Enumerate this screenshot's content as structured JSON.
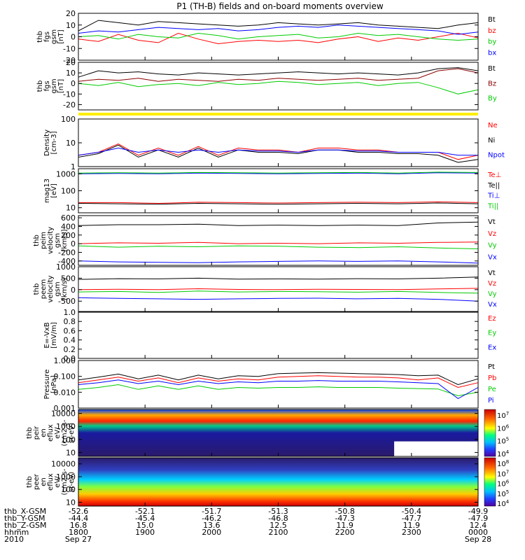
{
  "title": "P1 (TH-B) fields and on-board moments overview",
  "chart_data": [
    {
      "type": "line",
      "panel": "fgs_gsm",
      "ylabel": [
        "thb",
        "fgs",
        "gsm",
        "[nT]"
      ],
      "ylim": [
        -20,
        20
      ],
      "yticks": [
        -20,
        -10,
        0,
        10,
        20
      ],
      "x": [
        0,
        0.05,
        0.1,
        0.15,
        0.2,
        0.25,
        0.3,
        0.35,
        0.4,
        0.45,
        0.5,
        0.55,
        0.6,
        0.65,
        0.7,
        0.75,
        0.8,
        0.85,
        0.9,
        0.95,
        1.0
      ],
      "series": [
        {
          "name": "Bt",
          "color": "#000000",
          "values": [
            5,
            14,
            12,
            10,
            13,
            12,
            11,
            10,
            9,
            10,
            12,
            11,
            10,
            11,
            12,
            10,
            9,
            8,
            7,
            10,
            12
          ]
        },
        {
          "name": "bz",
          "color": "#ff0000",
          "values": [
            -2,
            -4,
            2,
            -3,
            -5,
            3,
            -2,
            -6,
            -4,
            -3,
            -4,
            -3,
            -5,
            -2,
            0,
            -4,
            -1,
            -3,
            0,
            3,
            -1
          ]
        },
        {
          "name": "by",
          "color": "#00cc00",
          "values": [
            0,
            1,
            -2,
            2,
            0,
            -1,
            3,
            1,
            -2,
            0,
            1,
            2,
            -1,
            0,
            3,
            1,
            2,
            0,
            -2,
            -3,
            -2
          ]
        },
        {
          "name": "bx",
          "color": "#0000ff",
          "values": [
            3,
            5,
            4,
            6,
            8,
            7,
            6,
            7,
            5,
            6,
            8,
            9,
            8,
            10,
            9,
            8,
            7,
            6,
            5,
            2,
            4
          ]
        }
      ]
    },
    {
      "type": "line",
      "panel": "fgs_gsm_sw",
      "ylabel": [
        "thb",
        "fgs",
        "gsm",
        "[nT]"
      ],
      "ylim": [
        -25,
        20
      ],
      "yticks": [
        -20,
        -10,
        0,
        10,
        20
      ],
      "x": [
        0,
        0.05,
        0.1,
        0.15,
        0.2,
        0.25,
        0.3,
        0.35,
        0.4,
        0.45,
        0.5,
        0.55,
        0.6,
        0.65,
        0.7,
        0.75,
        0.8,
        0.85,
        0.9,
        0.95,
        1.0
      ],
      "series": [
        {
          "name": "Bt",
          "color": "#000000",
          "values": [
            6,
            12,
            10,
            11,
            9,
            8,
            10,
            9,
            8,
            9,
            10,
            11,
            10,
            9,
            10,
            9,
            8,
            10,
            14,
            15,
            12
          ]
        },
        {
          "name": "Bz",
          "color": "#8b0000",
          "values": [
            2,
            4,
            3,
            5,
            2,
            4,
            3,
            2,
            4,
            3,
            5,
            4,
            3,
            4,
            5,
            3,
            4,
            5,
            12,
            14,
            10
          ]
        },
        {
          "name": "By",
          "color": "#00cc00",
          "values": [
            0,
            -2,
            1,
            -3,
            -1,
            0,
            -2,
            1,
            -1,
            0,
            2,
            1,
            -1,
            0,
            1,
            -2,
            0,
            1,
            -4,
            -10,
            -6
          ]
        }
      ]
    },
    {
      "type": "line",
      "panel": "density",
      "ylabel": [
        "Density",
        "[cm-3]"
      ],
      "yscale": "log",
      "ylim": [
        1,
        100
      ],
      "yticks": [
        1,
        10,
        100
      ],
      "x": [
        0,
        0.05,
        0.1,
        0.15,
        0.2,
        0.25,
        0.3,
        0.35,
        0.4,
        0.45,
        0.5,
        0.55,
        0.6,
        0.65,
        0.7,
        0.75,
        0.8,
        0.85,
        0.9,
        0.95,
        1.0
      ],
      "series": [
        {
          "name": "Ne",
          "color": "#ff0000",
          "values": [
            3,
            4,
            9,
            3,
            6,
            3,
            7,
            3,
            6,
            5,
            5,
            4,
            6,
            6,
            5,
            5,
            4,
            4,
            4,
            2,
            3
          ]
        },
        {
          "name": "Ni",
          "color": "#000000",
          "values": [
            2.5,
            3.5,
            8,
            2.5,
            5,
            2.5,
            6,
            2.5,
            5,
            4,
            4,
            3.5,
            5,
            5,
            4,
            4,
            3.5,
            3.5,
            3,
            1.5,
            2
          ]
        },
        {
          "name": "Npot",
          "color": "#0000ff",
          "values": [
            3,
            4,
            6,
            4,
            5,
            4,
            5,
            4,
            5,
            4.5,
            4.5,
            4,
            5,
            5,
            4.5,
            4.5,
            4,
            4,
            4,
            3,
            3
          ]
        }
      ]
    },
    {
      "type": "line",
      "panel": "temperature",
      "ylabel": [
        "mag13",
        "[eV]"
      ],
      "yscale": "log",
      "ylim": [
        5,
        2000
      ],
      "yticks": [
        10,
        100,
        1000
      ],
      "x": [
        0,
        0.1,
        0.2,
        0.3,
        0.4,
        0.5,
        0.6,
        0.7,
        0.8,
        0.9,
        1.0
      ],
      "series": [
        {
          "name": "Te⊥",
          "color": "#ff0000",
          "values": [
            20,
            20,
            18,
            21,
            20,
            19,
            20,
            21,
            20,
            22,
            20
          ]
        },
        {
          "name": "Te||",
          "color": "#000000",
          "values": [
            18,
            17,
            16,
            18,
            17,
            16,
            17,
            18,
            17,
            19,
            17
          ]
        },
        {
          "name": "Ti⊥",
          "color": "#0000ff",
          "values": [
            1000,
            1050,
            1000,
            1100,
            1050,
            1000,
            1050,
            1100,
            1000,
            1150,
            1100
          ]
        },
        {
          "name": "Ti||",
          "color": "#00cc00",
          "values": [
            1100,
            1150,
            1100,
            1200,
            1150,
            1100,
            1150,
            1200,
            1100,
            1250,
            1200
          ]
        }
      ]
    },
    {
      "type": "line",
      "panel": "peim_velocity",
      "ylabel": [
        "thb",
        "peim",
        "velocity",
        "gsm",
        "[km/s]"
      ],
      "ylim": [
        -500,
        650
      ],
      "yticks": [
        -400,
        -200,
        0,
        200,
        400,
        600
      ],
      "x": [
        0,
        0.1,
        0.2,
        0.3,
        0.4,
        0.5,
        0.6,
        0.7,
        0.8,
        0.9,
        1.0
      ],
      "series": [
        {
          "name": "Vt",
          "color": "#000000",
          "values": [
            420,
            440,
            440,
            450,
            420,
            430,
            420,
            430,
            420,
            480,
            500
          ]
        },
        {
          "name": "Vz",
          "color": "#ff0000",
          "values": [
            0,
            20,
            10,
            30,
            0,
            10,
            0,
            20,
            10,
            30,
            40
          ]
        },
        {
          "name": "Vy",
          "color": "#00cc00",
          "values": [
            -50,
            -80,
            -60,
            -70,
            -50,
            -60,
            -80,
            -90,
            -70,
            -100,
            -120
          ]
        },
        {
          "name": "Vx",
          "color": "#0000ff",
          "values": [
            -400,
            -420,
            -430,
            -440,
            -420,
            -410,
            -400,
            -410,
            -400,
            -420,
            -450
          ]
        }
      ]
    },
    {
      "type": "line",
      "panel": "peem_velocity",
      "ylabel": [
        "thb",
        "peem",
        "velocity",
        "gsm",
        "[km/s]"
      ],
      "ylim": [
        -950,
        1000
      ],
      "yticks": [
        -500,
        0,
        500,
        1000
      ],
      "x": [
        0,
        0.1,
        0.2,
        0.3,
        0.4,
        0.5,
        0.6,
        0.7,
        0.8,
        0.9,
        1.0
      ],
      "series": [
        {
          "name": "Vt",
          "color": "#000000",
          "values": [
            450,
            480,
            470,
            500,
            460,
            470,
            460,
            480,
            470,
            500,
            550
          ]
        },
        {
          "name": "Vz",
          "color": "#ff0000",
          "values": [
            0,
            20,
            0,
            40,
            10,
            0,
            20,
            10,
            0,
            30,
            60
          ]
        },
        {
          "name": "Vy",
          "color": "#00cc00",
          "values": [
            -100,
            -80,
            -120,
            -60,
            -100,
            -80,
            -90,
            -110,
            -80,
            -120,
            -150
          ]
        },
        {
          "name": "Vx",
          "color": "#0000ff",
          "values": [
            -350,
            -380,
            -400,
            -420,
            -400,
            -380,
            -370,
            -400,
            -380,
            -420,
            -500
          ]
        }
      ]
    },
    {
      "type": "line",
      "panel": "efield",
      "ylabel": [
        "E=-VxB",
        "[mV/m]"
      ],
      "ylim": [
        0,
        1
      ],
      "yticks": [
        0,
        0.2,
        0.4,
        0.6,
        0.8,
        1.0
      ],
      "series": [
        {
          "name": "Ez",
          "color": "#ff0000",
          "values": []
        },
        {
          "name": "Ey",
          "color": "#00cc00",
          "values": []
        },
        {
          "name": "Ex",
          "color": "#0000ff",
          "values": []
        }
      ]
    },
    {
      "type": "line",
      "panel": "pressure",
      "ylabel": [
        "Pressure",
        "[nPa]"
      ],
      "yscale": "log",
      "ylim": [
        0.001,
        1
      ],
      "yticks": [
        0.001,
        0.01,
        0.1,
        1.0
      ],
      "x": [
        0,
        0.05,
        0.1,
        0.15,
        0.2,
        0.25,
        0.3,
        0.35,
        0.4,
        0.45,
        0.5,
        0.55,
        0.6,
        0.65,
        0.7,
        0.75,
        0.8,
        0.85,
        0.9,
        0.95,
        1.0
      ],
      "series": [
        {
          "name": "Pt",
          "color": "#000000",
          "values": [
            0.06,
            0.09,
            0.14,
            0.07,
            0.12,
            0.06,
            0.12,
            0.07,
            0.11,
            0.1,
            0.15,
            0.16,
            0.17,
            0.16,
            0.15,
            0.14,
            0.13,
            0.11,
            0.12,
            0.03,
            0.07
          ]
        },
        {
          "name": "Pb",
          "color": "#ff0000",
          "values": [
            0.04,
            0.06,
            0.09,
            0.05,
            0.08,
            0.04,
            0.08,
            0.05,
            0.07,
            0.06,
            0.09,
            0.1,
            0.11,
            0.1,
            0.09,
            0.09,
            0.08,
            0.06,
            0.08,
            0.02,
            0.04
          ]
        },
        {
          "name": "Pe",
          "color": "#00cc00",
          "values": [
            0.015,
            0.02,
            0.03,
            0.015,
            0.025,
            0.015,
            0.025,
            0.015,
            0.02,
            0.018,
            0.02,
            0.02,
            0.022,
            0.02,
            0.02,
            0.02,
            0.018,
            0.017,
            0.016,
            0.006,
            0.01
          ]
        },
        {
          "name": "Pi",
          "color": "#0000ff",
          "values": [
            0.03,
            0.04,
            0.06,
            0.035,
            0.05,
            0.03,
            0.05,
            0.035,
            0.045,
            0.04,
            0.05,
            0.05,
            0.055,
            0.05,
            0.05,
            0.05,
            0.045,
            0.04,
            0.035,
            0.004,
            0.02
          ]
        }
      ]
    },
    {
      "type": "heatmap",
      "panel": "peir_eflux",
      "ylabel": [
        "thb",
        "peir",
        "en",
        "eflux",
        "eV/",
        "(cm2-s-",
        "sr-eV)"
      ],
      "yscale": "log",
      "ylim": [
        5,
        20000
      ],
      "yticks": [
        10,
        100,
        1000,
        10000
      ],
      "colorbar_ticks": [
        "10^7",
        "10^6",
        "10^5",
        "10^4"
      ]
    },
    {
      "type": "heatmap",
      "panel": "peer_eflux",
      "ylabel": [
        "thb",
        "peer",
        "en",
        "eflux",
        "eV/",
        "(cm2-s-",
        "sr-eV)"
      ],
      "yscale": "log",
      "ylim": [
        5,
        30000
      ],
      "yticks": [
        10,
        100,
        1000,
        10000
      ],
      "colorbar_ticks": [
        "10^8",
        "10^7",
        "10^6",
        "10^5",
        "10^4"
      ]
    }
  ],
  "xaxis": {
    "tick_positions": [
      0,
      0.1667,
      0.3333,
      0.5,
      0.6667,
      0.8333,
      1.0
    ],
    "rows": [
      {
        "label": "thb_X-GSM",
        "values": [
          "-52.6",
          "-52.1",
          "-51.7",
          "-51.3",
          "-50.8",
          "-50.4",
          "-49.9"
        ]
      },
      {
        "label": "thb_Y-GSM",
        "values": [
          "-44.4",
          "-45.4",
          "-46.2",
          "-46.8",
          "-47.3",
          "-47.7",
          "-47.9"
        ]
      },
      {
        "label": "thb_Z-GSM",
        "values": [
          "16.8",
          "15.0",
          "13.6",
          "12.5",
          "11.9",
          "11.9",
          "12.4"
        ]
      },
      {
        "label": "hhmm",
        "values": [
          "1800",
          "1900",
          "2000",
          "2100",
          "2200",
          "2300",
          "0000"
        ]
      },
      {
        "label": "2010",
        "values": [
          "Sep 27",
          "",
          "",
          "",
          "",
          "",
          "Sep 28"
        ]
      }
    ]
  }
}
